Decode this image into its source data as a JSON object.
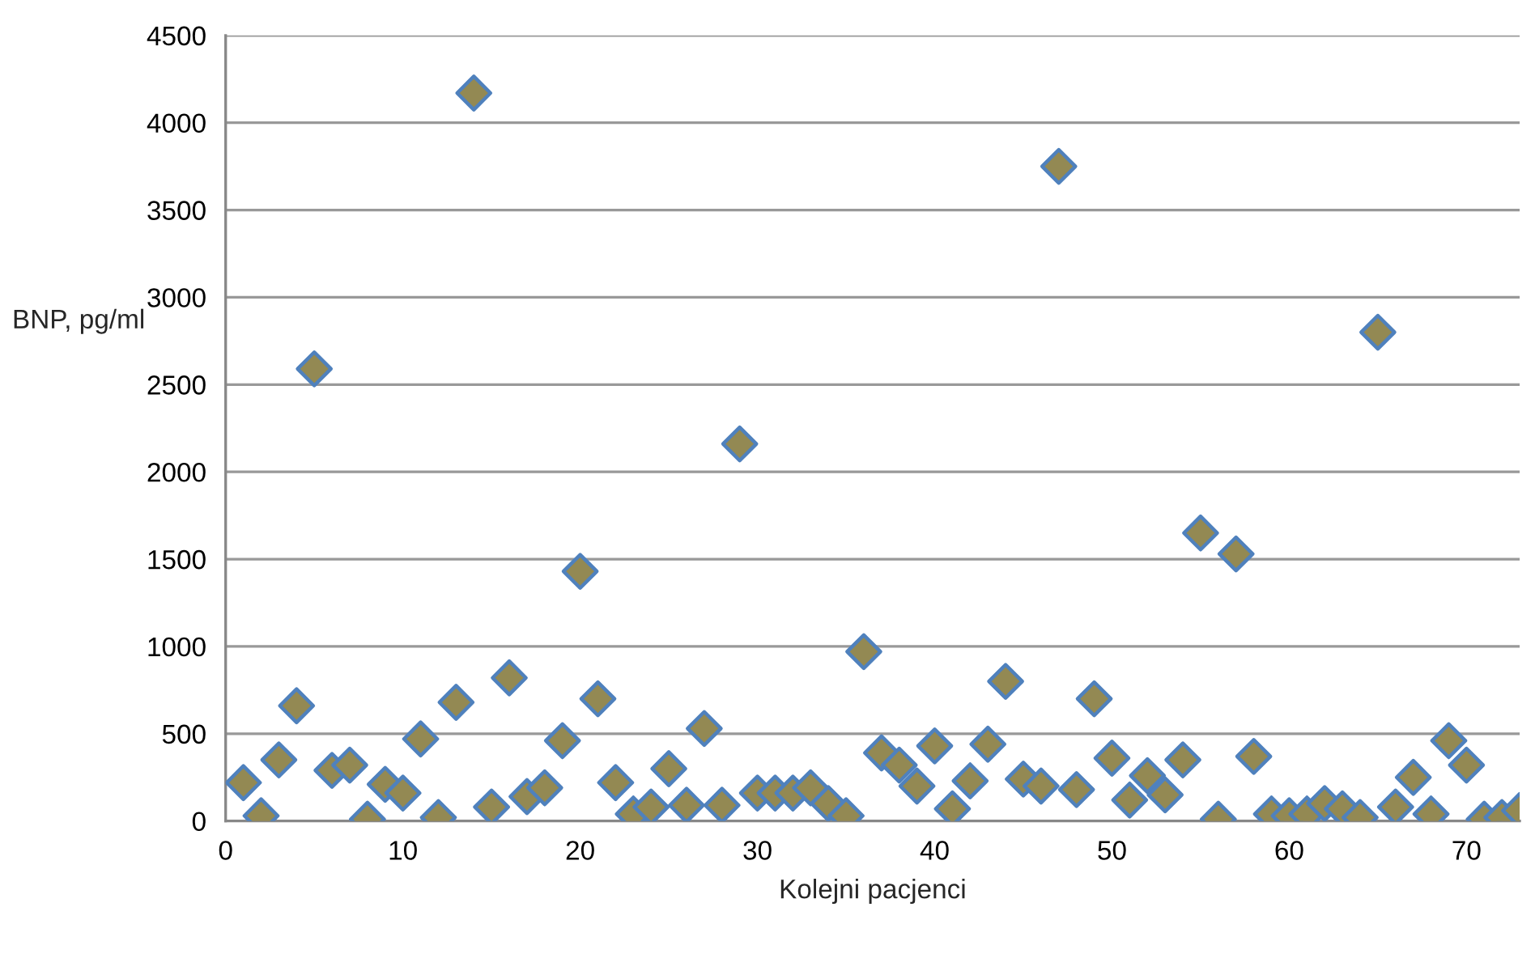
{
  "chart_data": {
    "type": "scatter",
    "xlabel": "Kolejni pacjenci",
    "ylabel": "BNP, pg/ml",
    "x": [
      1,
      2,
      3,
      4,
      5,
      6,
      7,
      8,
      9,
      10,
      11,
      12,
      13,
      14,
      15,
      16,
      17,
      18,
      19,
      20,
      21,
      22,
      23,
      24,
      25,
      26,
      27,
      28,
      29,
      30,
      31,
      32,
      33,
      34,
      35,
      36,
      37,
      38,
      39,
      40,
      41,
      42,
      43,
      44,
      45,
      46,
      47,
      48,
      49,
      50,
      51,
      52,
      53,
      54,
      55,
      56,
      57,
      58,
      59,
      60,
      61,
      62,
      63,
      64,
      65,
      66,
      67,
      68,
      69,
      70,
      71,
      72,
      73
    ],
    "series": [
      {
        "color": "#938953",
        "values": [
          220,
          30,
          350,
          660,
          2590,
          290,
          320,
          10,
          210,
          160,
          470,
          20,
          680,
          4170,
          80,
          820,
          140,
          190,
          460,
          1430,
          700,
          220,
          40,
          80,
          300,
          90,
          530,
          90,
          2160,
          160,
          160,
          160,
          190,
          100,
          30,
          970,
          390,
          320,
          200,
          430,
          70,
          230,
          440,
          800,
          240,
          200,
          3750,
          180,
          700,
          360,
          120,
          260,
          150,
          350,
          1650,
          10,
          1530,
          370,
          40,
          30,
          40,
          100,
          70,
          20,
          2800,
          80,
          250,
          40,
          460,
          320,
          10,
          20,
          60
        ]
      }
    ],
    "xlim": [
      0,
      73
    ],
    "xticks": [
      0,
      10,
      20,
      30,
      40,
      50,
      60,
      70
    ],
    "ylim": [
      0,
      4500
    ],
    "yticks": [
      0,
      500,
      1000,
      1500,
      2000,
      2500,
      3000,
      3500,
      4000,
      4500
    ],
    "grid": "y",
    "marker": "diamond",
    "legend": false
  }
}
